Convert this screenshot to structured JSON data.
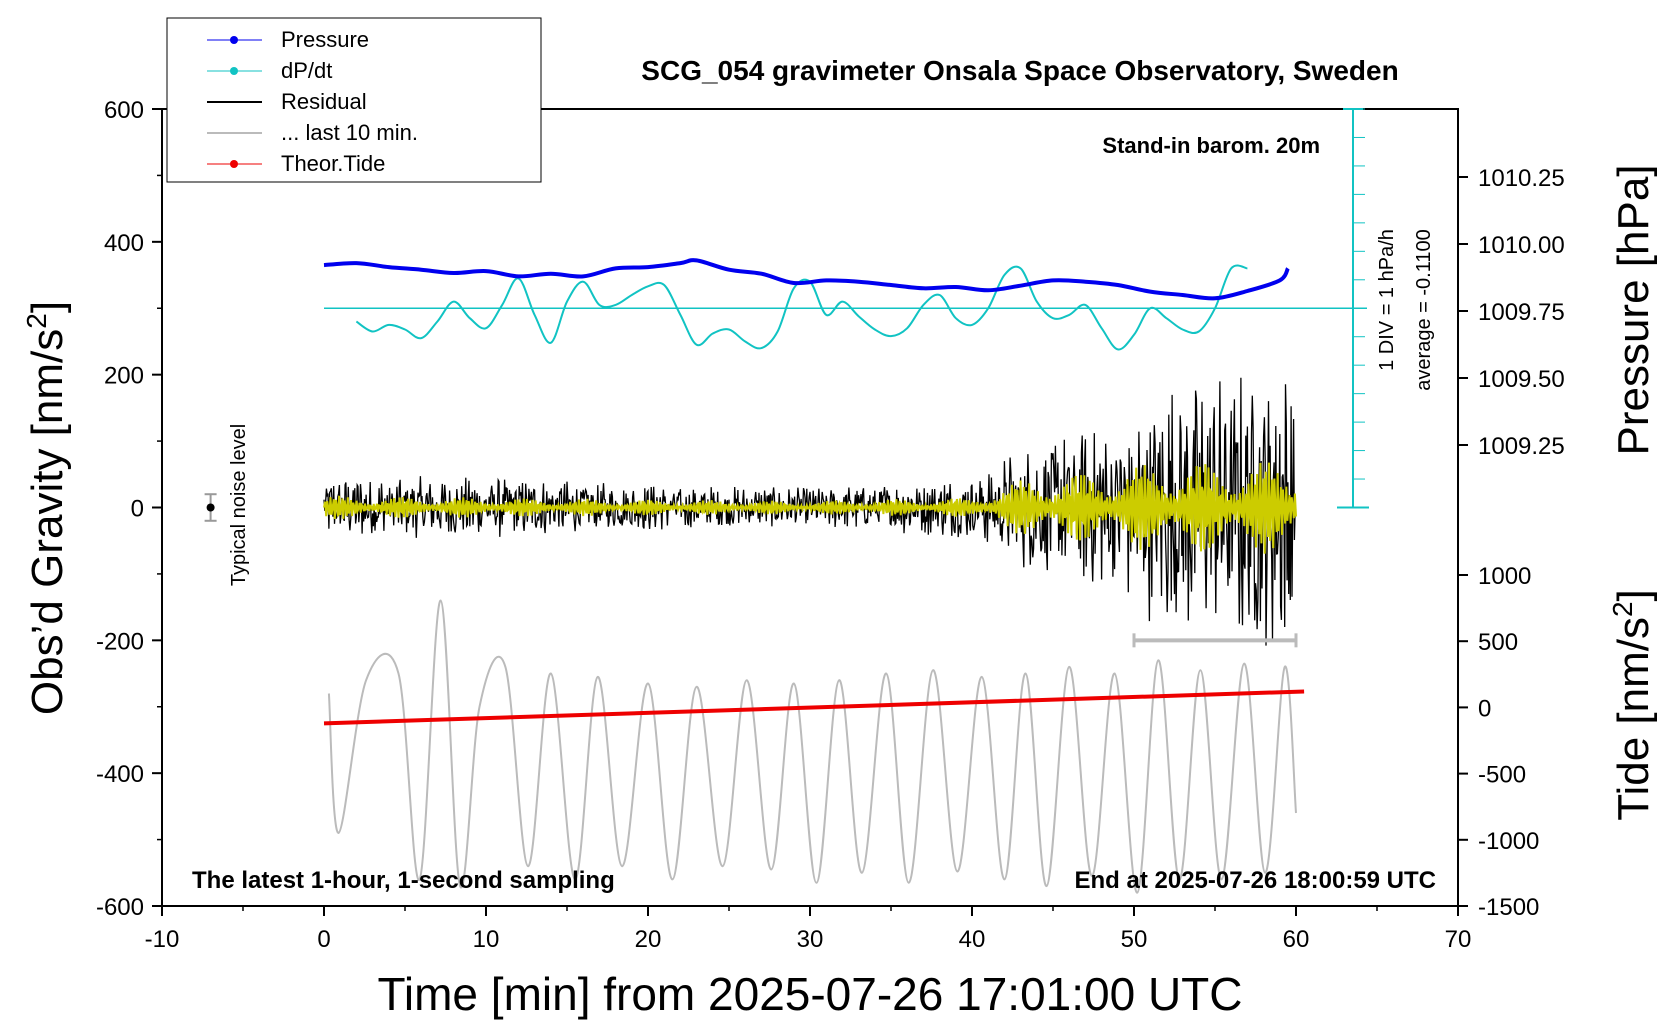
{
  "chart_data": {
    "type": "line",
    "title": "SCG_054 gravimeter Onsala Space Observatory, Sweden",
    "xlabel": "Time [min] from 2025-07-26 17:01:00 UTC",
    "ylabel_left_main": "Obs’d Gravity [nm/s",
    "ylabel_left_sup": "2",
    "ylabel_left_close": "]",
    "ylabel_right_top": "Pressure [hPa]",
    "ylabel_right_bottom_main": "Tide [nm/s",
    "ylabel_right_bottom_sup": "2",
    "ylabel_right_bottom_close": "]",
    "xlim": [
      -10,
      70
    ],
    "ylim": [
      -600,
      600
    ],
    "x_ticks": [
      "-10",
      "0",
      "10",
      "20",
      "30",
      "40",
      "50",
      "60",
      "70"
    ],
    "y_ticks": [
      "-600",
      "-400",
      "-200",
      "0",
      "200",
      "400",
      "600"
    ],
    "pressure_ticks": [
      "1010.25",
      "1010.00",
      "1009.75",
      "1009.50",
      "1009.25"
    ],
    "tide_ticks": [
      "1000",
      "500",
      "0",
      "-500",
      "-1000",
      "-1500"
    ],
    "annotations": {
      "barometer": "Stand-in barom. 20m",
      "scale_div": "1 DIV = 1 hPa/h",
      "average": "average = -0.1100",
      "noise": "Typical noise level",
      "sampling": "The latest 1-hour, 1-second sampling",
      "end": "End at 2025-07-26 18:00:59 UTC"
    },
    "legend_position": "top-left",
    "series": [
      {
        "name": "Pressure",
        "color": "#0000ee",
        "x": [
          0,
          2,
          4,
          6,
          8,
          10,
          12,
          14,
          16,
          18,
          20,
          22,
          23,
          25,
          27,
          29,
          31,
          33,
          35,
          37,
          39,
          41,
          43,
          45,
          47,
          49,
          51,
          53,
          55,
          57,
          59,
          59.5
        ],
        "values": [
          365,
          368,
          362,
          358,
          353,
          356,
          348,
          352,
          348,
          360,
          362,
          368,
          372,
          358,
          352,
          338,
          342,
          340,
          335,
          330,
          332,
          327,
          334,
          342,
          340,
          335,
          325,
          320,
          315,
          326,
          342,
          360
        ]
      },
      {
        "name": "dP/dt",
        "color": "#11c3c3",
        "x": [
          2,
          3,
          4,
          5,
          6,
          7,
          8,
          9,
          10,
          11,
          12,
          13,
          14,
          15,
          16,
          17,
          18,
          19,
          20,
          21,
          22,
          23,
          24,
          25,
          26,
          27,
          28,
          29,
          30,
          31,
          32,
          33,
          34,
          35,
          36,
          37,
          38,
          39,
          40,
          41,
          42,
          43,
          44,
          45,
          46,
          47,
          48,
          49,
          50,
          51,
          52,
          53,
          54,
          55,
          56,
          57
        ],
        "values": [
          280,
          265,
          275,
          268,
          255,
          280,
          310,
          285,
          270,
          305,
          345,
          290,
          248,
          310,
          340,
          305,
          305,
          320,
          333,
          335,
          290,
          245,
          262,
          268,
          250,
          240,
          265,
          330,
          340,
          290,
          310,
          288,
          268,
          258,
          270,
          305,
          320,
          285,
          275,
          300,
          350,
          360,
          310,
          285,
          290,
          305,
          270,
          238,
          260,
          300,
          285,
          268,
          265,
          300,
          360,
          360
        ]
      },
      {
        "name": "Residual",
        "color": "#000000"
      },
      {
        "name": "... last 10 min.",
        "color": "#bbbbbb"
      },
      {
        "name": "Theor.Tide",
        "color": "#ee0000",
        "x": [
          0,
          60.5
        ],
        "values": [
          -325,
          -277
        ]
      }
    ],
    "residual_envelope": {
      "x": [
        0,
        10,
        20,
        30,
        40,
        44,
        48,
        52,
        56,
        60
      ],
      "amplitude": [
        40,
        40,
        30,
        25,
        40,
        90,
        100,
        160,
        170,
        190
      ]
    },
    "band_filtered_envelope": {
      "color": "#cccc00",
      "x": [
        0,
        10,
        20,
        30,
        40,
        44,
        48,
        52,
        56,
        60
      ],
      "amplitude": [
        18,
        15,
        12,
        10,
        15,
        50,
        55,
        70,
        70,
        70
      ]
    },
    "last10_oscillation_peaks": {
      "x": [
        0.3,
        0.9,
        2.6,
        4.6,
        5.9,
        7.2,
        8.4,
        9.6,
        11.2,
        12.6,
        14.0,
        15.5,
        16.9,
        18.4,
        20.0,
        21.5,
        23.0,
        24.6,
        26.1,
        27.6,
        29.0,
        30.4,
        31.8,
        33.2,
        34.7,
        36.1,
        37.6,
        39.1,
        40.6,
        42.0,
        43.3,
        44.6,
        46.0,
        47.4,
        48.8,
        50.2,
        51.5,
        52.8,
        54.1,
        55.4,
        56.8,
        58.1,
        59.3,
        60.0
      ],
      "values": [
        -280,
        -490,
        -260,
        -250,
        -560,
        -140,
        -570,
        -300,
        -240,
        -540,
        -250,
        -560,
        -255,
        -540,
        -265,
        -560,
        -270,
        -540,
        -260,
        -545,
        -265,
        -565,
        -260,
        -550,
        -250,
        -565,
        -245,
        -548,
        -255,
        -560,
        -250,
        -570,
        -240,
        -555,
        -250,
        -580,
        -230,
        -560,
        -245,
        -560,
        -235,
        -550,
        -240,
        -460
      ]
    },
    "stat_bar": {
      "x": [
        50,
        60
      ],
      "value": -200
    },
    "noise_bar": {
      "x": -7,
      "value": 0,
      "half_width": 20
    }
  }
}
